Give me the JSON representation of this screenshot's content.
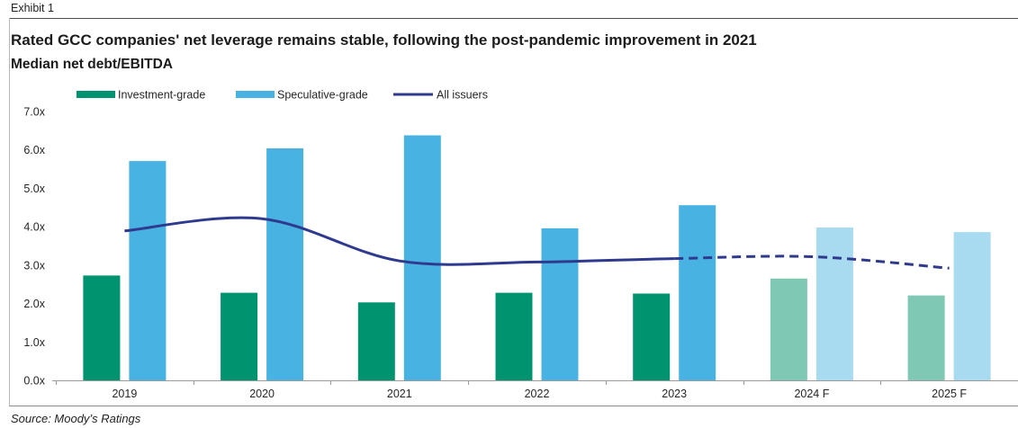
{
  "exhibit_label": "Exhibit 1",
  "source_note": "Source: Moody’s Ratings",
  "chart_data": {
    "type": "bar",
    "title": "Rated GCC companies' net leverage remains stable, following the post-pandemic improvement in 2021",
    "subtitle": "Median net debt/EBITDA",
    "categories": [
      "2019",
      "2020",
      "2021",
      "2022",
      "2023",
      "2024 F",
      "2025 F"
    ],
    "is_forecast": [
      false,
      false,
      false,
      false,
      false,
      true,
      true
    ],
    "series": [
      {
        "name": "Investment-grade",
        "type": "bar",
        "color": "#00936f",
        "forecast_color": "#7fc8b4",
        "values": [
          2.73,
          2.28,
          2.03,
          2.28,
          2.26,
          2.65,
          2.21
        ]
      },
      {
        "name": "Speculative-grade",
        "type": "bar",
        "color": "#48b3e2",
        "forecast_color": "#a8daf0",
        "values": [
          5.71,
          6.04,
          6.38,
          3.96,
          4.56,
          3.98,
          3.86
        ]
      },
      {
        "name": "All issuers",
        "type": "line",
        "smooth": true,
        "dashed_in_forecast": true,
        "color": "#2f3a8f",
        "values": [
          3.89,
          4.21,
          3.11,
          3.08,
          3.17,
          3.22,
          2.92
        ]
      }
    ],
    "ylim": [
      0,
      7
    ],
    "yticks": [
      0,
      1,
      2,
      3,
      4,
      5,
      6,
      7
    ],
    "ytick_labels": [
      "0.0x",
      "1.0x",
      "2.0x",
      "3.0x",
      "4.0x",
      "5.0x",
      "6.0x",
      "7.0x"
    ],
    "grid": false,
    "legend": "top-left"
  }
}
